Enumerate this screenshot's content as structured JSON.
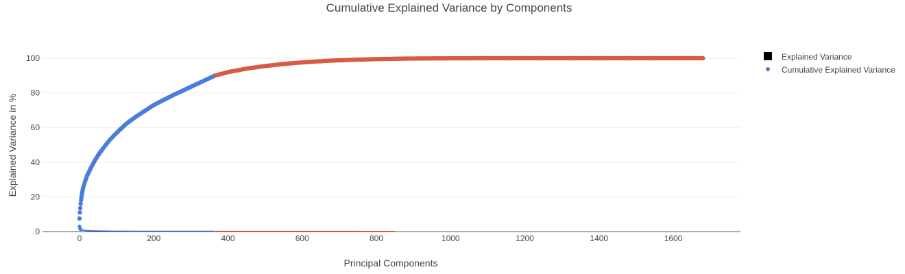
{
  "chart_data": {
    "type": "scatter",
    "title": "Cumulative Explained Variance by Components",
    "xlabel": "Principal Components",
    "ylabel": "Explained Variance in %",
    "xlim": [
      -100,
      1780
    ],
    "ylim": [
      0,
      105
    ],
    "x_ticks": [
      0,
      200,
      400,
      600,
      800,
      1000,
      1200,
      1400,
      1600
    ],
    "y_ticks": [
      0,
      20,
      40,
      60,
      80,
      100
    ],
    "grid": "horizontal",
    "legend_position": "top-right",
    "colors": {
      "first_90_percent": "#4a7ddb",
      "remaining": "#d95a45",
      "legend_square": "#000000",
      "legend_dot": "#4a7ddb"
    },
    "threshold_component": 365,
    "series": [
      {
        "name": "Explained Variance",
        "marker": "square",
        "description_points": [
          [
            0,
            3.0
          ],
          [
            5,
            1.2
          ],
          [
            10,
            0.8
          ],
          [
            20,
            0.5
          ],
          [
            40,
            0.3
          ],
          [
            100,
            0.15
          ],
          [
            365,
            0.06
          ],
          [
            850,
            0.01
          ]
        ]
      },
      {
        "name": "Cumulative Explained Variance",
        "marker": "circle",
        "points": [
          [
            0,
            7.5
          ],
          [
            1,
            11
          ],
          [
            2,
            13.5
          ],
          [
            3,
            16
          ],
          [
            4,
            18
          ],
          [
            6,
            21
          ],
          [
            8,
            23.5
          ],
          [
            10,
            25.5
          ],
          [
            15,
            29
          ],
          [
            20,
            32
          ],
          [
            30,
            36.5
          ],
          [
            40,
            40.5
          ],
          [
            50,
            44
          ],
          [
            60,
            47
          ],
          [
            80,
            52.5
          ],
          [
            100,
            57
          ],
          [
            125,
            62
          ],
          [
            150,
            66
          ],
          [
            175,
            69.5
          ],
          [
            200,
            73
          ],
          [
            250,
            78.5
          ],
          [
            300,
            83.5
          ],
          [
            365,
            90
          ],
          [
            400,
            92
          ],
          [
            450,
            94
          ],
          [
            500,
            95.5
          ],
          [
            550,
            96.7
          ],
          [
            600,
            97.6
          ],
          [
            650,
            98.3
          ],
          [
            700,
            98.8
          ],
          [
            750,
            99.2
          ],
          [
            800,
            99.5
          ],
          [
            850,
            99.7
          ],
          [
            900,
            99.85
          ],
          [
            1000,
            99.95
          ],
          [
            1100,
            100
          ],
          [
            1680,
            100
          ]
        ]
      }
    ],
    "legend": [
      "Explained Variance",
      "Cumulative Explained Variance"
    ]
  }
}
